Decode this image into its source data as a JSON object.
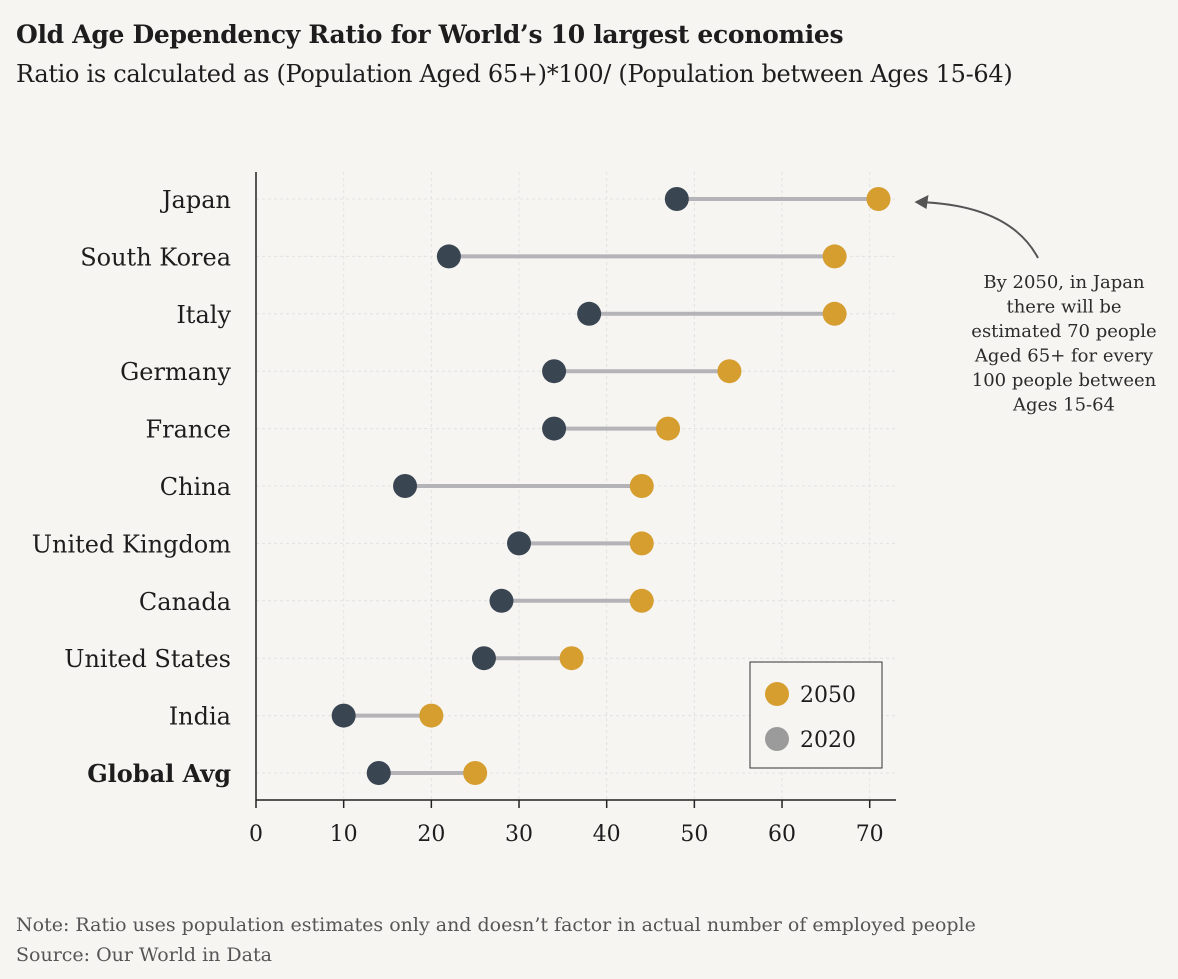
{
  "header": {
    "title": "Old Age Dependency Ratio for World’s 10 largest economies",
    "subtitle": "Ratio is calculated as (Population Aged 65+)*100/ (Population between Ages 15-64)"
  },
  "footer": {
    "note": "Note: Ratio uses population estimates only and doesn’t factor in actual number of employed people",
    "source": "Source: Our World in Data"
  },
  "colors": {
    "y2050": "#d69d2f",
    "y2020": "#3a4552",
    "legend2020": "#9b9b9b",
    "connector": "#b3b3b8",
    "axis": "#222222",
    "grid": "#e2e2e2"
  },
  "chart_data": {
    "type": "dumbbell",
    "categories": [
      "Japan",
      "South Korea",
      "Italy",
      "Germany",
      "France",
      "China",
      "United Kingdom",
      "Canada",
      "United States",
      "India",
      "Global Avg"
    ],
    "bold_categories": [
      "Global Avg"
    ],
    "series": [
      {
        "name": "2020",
        "values": [
          48,
          22,
          38,
          34,
          34,
          17,
          30,
          28,
          26,
          10,
          14
        ]
      },
      {
        "name": "2050",
        "values": [
          71,
          66,
          66,
          54,
          47,
          44,
          44,
          44,
          36,
          20,
          25
        ]
      }
    ],
    "xticks": [
      0,
      10,
      20,
      30,
      40,
      50,
      60,
      70
    ],
    "xlim": [
      0,
      73
    ],
    "grid": true,
    "legend": {
      "placement": "bottom-right",
      "entries": [
        "2050",
        "2020"
      ]
    },
    "annotation": {
      "target": "Japan",
      "lines": [
        "By 2050, in Japan",
        "there will be",
        "estimated 70 people",
        "Aged 65+ for every",
        "100 people between",
        "Ages 15-64"
      ]
    }
  }
}
